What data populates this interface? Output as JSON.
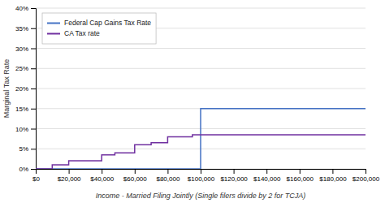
{
  "chart_data": {
    "type": "line",
    "xlabel": "Income - Married Filing Jointly (Single filers divide by 2 for TCJA)",
    "ylabel": "Marginal Tax Rate",
    "series": [
      {
        "name": "Federal Cap Gains Tax Rate",
        "color": "#4472C4",
        "x": [
          0,
          100000,
          100000,
          200000
        ],
        "values": [
          0,
          0,
          15,
          15
        ]
      },
      {
        "name": "CA Tax rate",
        "color": "#7030A0",
        "x": [
          0,
          10000,
          10000,
          20000,
          20000,
          40000,
          40000,
          48000,
          48000,
          60000,
          60000,
          70000,
          70000,
          80000,
          80000,
          95000,
          95000,
          100000,
          100000,
          200000
        ],
        "values": [
          0,
          0,
          1,
          1,
          2,
          2,
          3.5,
          3.5,
          4,
          4,
          6,
          6,
          6.5,
          6.5,
          8,
          8,
          8.5,
          8.5,
          8.5,
          8.5
        ]
      }
    ],
    "xlim": [
      0,
      200000
    ],
    "ylim": [
      0,
      40
    ],
    "xticks": [
      {
        "value": 0,
        "label": "$0"
      },
      {
        "value": 20000,
        "label": "$20,000"
      },
      {
        "value": 40000,
        "label": "$40,000"
      },
      {
        "value": 60000,
        "label": "$60,000"
      },
      {
        "value": 80000,
        "label": "$80,000"
      },
      {
        "value": 100000,
        "label": "$100,000"
      },
      {
        "value": 120000,
        "label": "$120,000"
      },
      {
        "value": 140000,
        "label": "$140,000"
      },
      {
        "value": 160000,
        "label": "$160,000"
      },
      {
        "value": 180000,
        "label": "$180,000"
      },
      {
        "value": 200000,
        "label": "$200,000"
      }
    ],
    "yticks": [
      {
        "value": 0,
        "label": "0%"
      },
      {
        "value": 5,
        "label": "5%"
      },
      {
        "value": 10,
        "label": "10%"
      },
      {
        "value": 15,
        "label": "15%"
      },
      {
        "value": 20,
        "label": "20%"
      },
      {
        "value": 25,
        "label": "25%"
      },
      {
        "value": 30,
        "label": "30%"
      },
      {
        "value": 35,
        "label": "35%"
      },
      {
        "value": 40,
        "label": "40%"
      }
    ],
    "grid": true,
    "legend": "upper left"
  }
}
